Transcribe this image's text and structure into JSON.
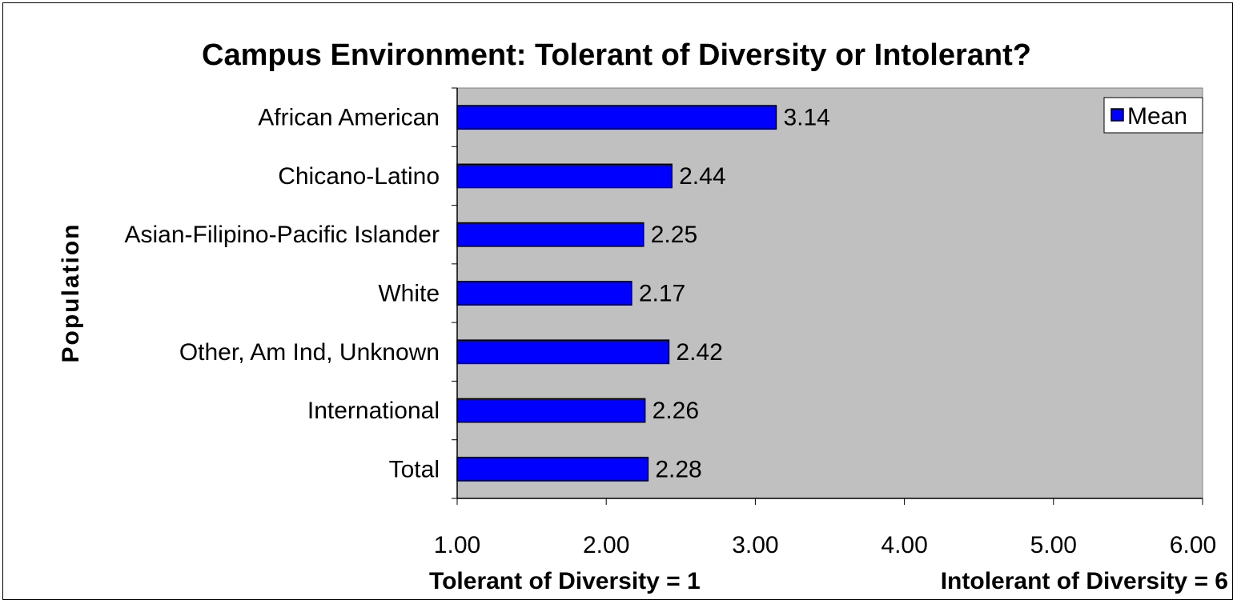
{
  "chart_data": {
    "type": "bar",
    "orientation": "horizontal",
    "title": "Campus Environment: Tolerant of Diversity or Intolerant?",
    "ylabel": "Population",
    "xlabel_left": "Tolerant of Diversity = 1",
    "xlabel_right": "Intolerant of Diversity = 6",
    "categories": [
      "African American",
      "Chicano-Latino",
      "Asian-Filipino-Pacific Islander",
      "White",
      "Other, Am Ind, Unknown",
      "International",
      "Total"
    ],
    "series": [
      {
        "name": "Mean",
        "values": [
          3.14,
          2.44,
          2.25,
          2.17,
          2.42,
          2.26,
          2.28
        ],
        "color": "#0000ff"
      }
    ],
    "data_labels": [
      "3.14",
      "2.44",
      "2.25",
      "2.17",
      "2.42",
      "2.26",
      "2.28"
    ],
    "xlim": [
      1.0,
      6.0
    ],
    "x_ticks": [
      "1.00",
      "2.00",
      "3.00",
      "4.00",
      "5.00",
      "6.00"
    ],
    "x_tick_values": [
      1,
      2,
      3,
      4,
      5,
      6
    ],
    "grid": false,
    "legend_position": "top-right",
    "plot_background": "#c0c0c0",
    "bar_outline": "#000000"
  }
}
